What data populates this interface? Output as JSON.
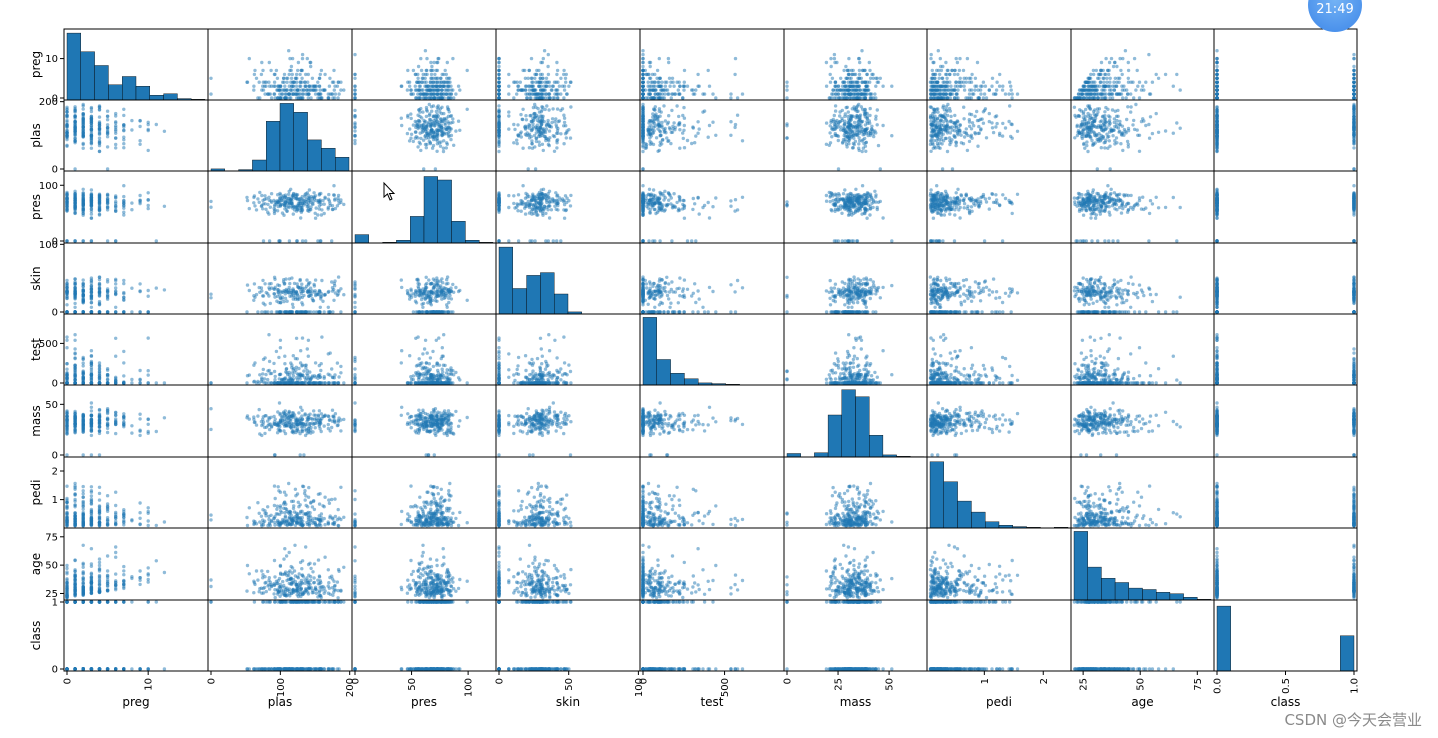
{
  "chart_data": {
    "type": "scatter_matrix",
    "variables": [
      "preg",
      "plas",
      "pres",
      "skin",
      "test",
      "mass",
      "pedi",
      "age",
      "class"
    ],
    "ranges": {
      "preg": [
        0,
        17
      ],
      "plas": [
        0,
        199
      ],
      "pres": [
        0,
        122
      ],
      "skin": [
        0,
        99
      ],
      "test": [
        0,
        846
      ],
      "mass": [
        0,
        67.1
      ],
      "pedi": [
        0.078,
        2.42
      ],
      "age": [
        21,
        81
      ],
      "class": [
        0,
        1
      ]
    },
    "x_ticks": {
      "preg": [
        "0",
        "10"
      ],
      "plas": [
        "0",
        "100",
        "200"
      ],
      "pres": [
        "0",
        "50",
        "100"
      ],
      "skin": [
        "0",
        "50",
        "100"
      ],
      "test": [
        "0",
        "500"
      ],
      "mass": [
        "0",
        "25",
        "50"
      ],
      "pedi": [
        "1",
        "2"
      ],
      "age": [
        "25",
        "50",
        "75"
      ],
      "class": [
        "0.0",
        "0.5",
        "1.0"
      ]
    },
    "x_tick_values": {
      "preg": [
        0,
        10
      ],
      "plas": [
        0,
        100,
        200
      ],
      "pres": [
        0,
        50,
        100
      ],
      "skin": [
        0,
        50,
        100
      ],
      "test": [
        0,
        500
      ],
      "mass": [
        0,
        25,
        50
      ],
      "pedi": [
        1,
        2
      ],
      "age": [
        25,
        50,
        75
      ],
      "class": [
        0,
        0.5,
        1
      ]
    },
    "y_ticks": {
      "preg": [
        "0",
        "10"
      ],
      "plas": [
        "0",
        "200"
      ],
      "pres": [
        "0",
        "100"
      ],
      "skin": [
        "0",
        "100"
      ],
      "test": [
        "0",
        "500"
      ],
      "mass": [
        "0",
        "50"
      ],
      "pedi": [
        "1",
        "2"
      ],
      "age": [
        "25",
        "50",
        "75"
      ],
      "class": [
        "0",
        "1"
      ]
    },
    "y_tick_values": {
      "preg": [
        0,
        10
      ],
      "plas": [
        0,
        200
      ],
      "pres": [
        0,
        100
      ],
      "skin": [
        0,
        100
      ],
      "test": [
        0,
        500
      ],
      "mass": [
        0,
        50
      ],
      "pedi": [
        1,
        2
      ],
      "age": [
        25,
        50,
        75
      ],
      "class": [
        0,
        1
      ]
    },
    "histograms": {
      "preg": [
        0.97,
        0.7,
        0.5,
        0.22,
        0.34,
        0.2,
        0.07,
        0.09,
        0.02,
        0.01
      ],
      "plas": [
        0.03,
        0.0,
        0.02,
        0.16,
        0.72,
        0.98,
        0.85,
        0.45,
        0.33,
        0.2
      ],
      "pres": [
        0.12,
        0.0,
        0.01,
        0.04,
        0.38,
        0.95,
        0.9,
        0.31,
        0.04,
        0.01
      ],
      "skin": [
        0.97,
        0.37,
        0.56,
        0.6,
        0.29,
        0.03,
        0.0,
        0.0,
        0.0,
        0.005
      ],
      "test": [
        0.98,
        0.37,
        0.17,
        0.09,
        0.03,
        0.02,
        0.01,
        0.0,
        0.0,
        0.005
      ],
      "mass": [
        0.05,
        0.0,
        0.06,
        0.6,
        0.96,
        0.86,
        0.31,
        0.03,
        0.01,
        0.005
      ],
      "pedi": [
        0.96,
        0.67,
        0.39,
        0.23,
        0.09,
        0.04,
        0.02,
        0.01,
        0.0,
        0.01
      ],
      "age": [
        0.98,
        0.47,
        0.31,
        0.25,
        0.17,
        0.15,
        0.11,
        0.09,
        0.04,
        0.01
      ],
      "class": [
        0.94,
        0,
        0,
        0,
        0,
        0,
        0,
        0,
        0,
        0.51
      ]
    },
    "marker_color": "#1f77b4",
    "bar_edge_color": "#000000"
  },
  "watermark": "CSDN @今天会营业",
  "clock_time": "21:49"
}
